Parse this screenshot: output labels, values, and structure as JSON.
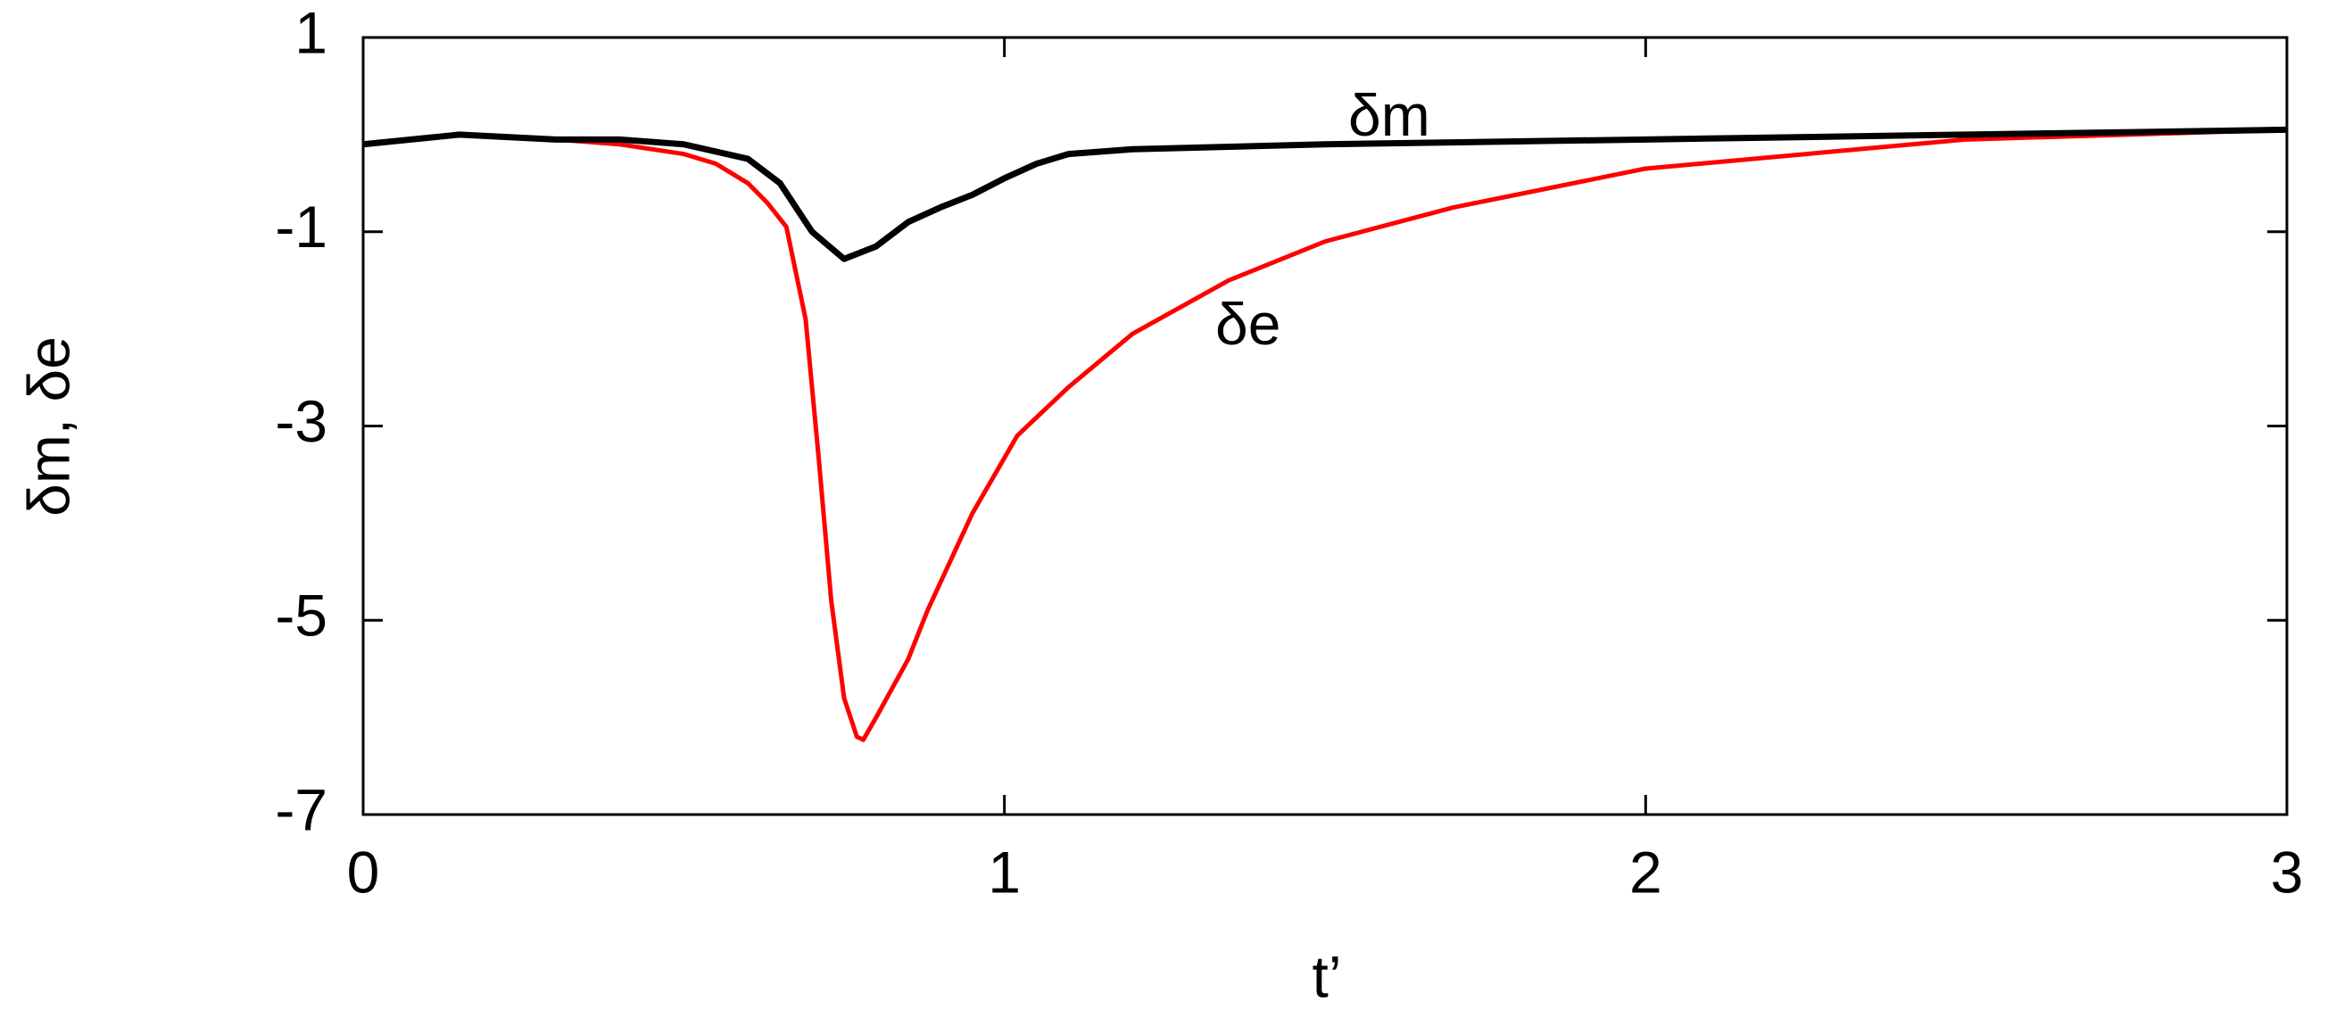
{
  "chart_data": {
    "type": "line",
    "x_label": "t’",
    "y_label": "δm, δe",
    "xlim": [
      0,
      3
    ],
    "xticks": [
      0,
      1,
      2,
      3
    ],
    "ylim": [
      -7,
      1
    ],
    "yticks": [
      1,
      -1,
      -3,
      -5,
      -7
    ],
    "grid": false,
    "annotations": [
      {
        "text": "δm",
        "x": 1.6,
        "y": 0.15
      },
      {
        "text": "δe",
        "x": 1.38,
        "y": -2.0
      }
    ],
    "series": [
      {
        "name": "δm",
        "color": "#000000",
        "x": [
          0,
          0.15,
          0.3,
          0.4,
          0.5,
          0.6,
          0.65,
          0.7,
          0.75,
          0.8,
          0.85,
          0.9,
          0.95,
          1.0,
          1.05,
          1.1,
          1.2,
          1.5,
          2.0,
          2.5,
          3.0
        ],
        "values": [
          -0.1,
          0.0,
          -0.05,
          -0.05,
          -0.1,
          -0.25,
          -0.5,
          -1.0,
          -1.28,
          -1.15,
          -0.9,
          -0.75,
          -0.62,
          -0.45,
          -0.3,
          -0.2,
          -0.15,
          -0.1,
          -0.05,
          0.0,
          0.05
        ]
      },
      {
        "name": "δe",
        "color": "#ff0000",
        "x": [
          0,
          0.15,
          0.3,
          0.4,
          0.5,
          0.55,
          0.6,
          0.63,
          0.66,
          0.69,
          0.71,
          0.73,
          0.75,
          0.77,
          0.78,
          0.8,
          0.85,
          0.88,
          0.95,
          1.02,
          1.1,
          1.2,
          1.35,
          1.5,
          1.7,
          2.0,
          2.5,
          3.0
        ],
        "values": [
          -0.1,
          0.0,
          -0.05,
          -0.1,
          -0.2,
          -0.3,
          -0.5,
          -0.7,
          -0.95,
          -1.9,
          -3.3,
          -4.8,
          -5.8,
          -6.2,
          -6.23,
          -6.0,
          -5.4,
          -4.9,
          -3.9,
          -3.1,
          -2.6,
          -2.05,
          -1.5,
          -1.1,
          -0.75,
          -0.35,
          -0.05,
          0.05
        ]
      }
    ]
  }
}
